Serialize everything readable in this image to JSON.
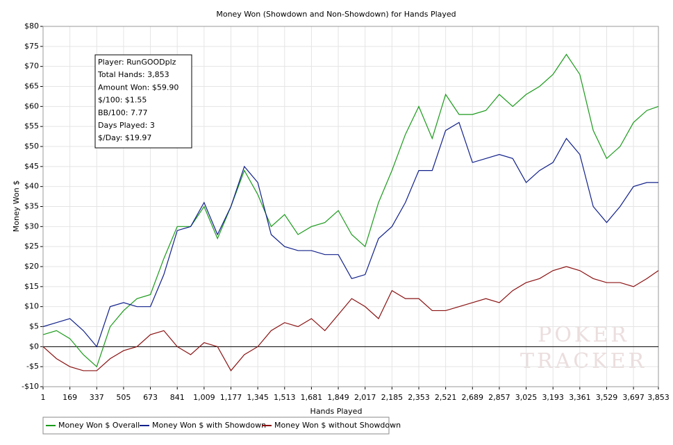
{
  "chart_data": {
    "type": "line",
    "title": "Money Won (Showdown and Non-Showdown) for Hands Played",
    "x_label": "Hands Played",
    "y_label": "Money Won $",
    "annotations": [
      "Player: RunGOODplz",
      "Total Hands: 3,853",
      "Amount Won: $59.90",
      "$/100: $1.55",
      "BB/100: 7.77",
      "Days Played: 3",
      "$/Day: $19.97"
    ],
    "watermark": [
      "POKER",
      "TRACKER"
    ],
    "x": [
      1,
      85,
      169,
      253,
      337,
      421,
      505,
      589,
      673,
      757,
      841,
      925,
      1009,
      1093,
      1177,
      1261,
      1345,
      1429,
      1513,
      1597,
      1681,
      1765,
      1849,
      1933,
      2017,
      2101,
      2185,
      2269,
      2353,
      2437,
      2521,
      2605,
      2689,
      2773,
      2857,
      2941,
      3025,
      3109,
      3193,
      3277,
      3361,
      3445,
      3529,
      3613,
      3697,
      3781,
      3853
    ],
    "series": [
      {
        "name": "Money Won $ Overall",
        "color": "#1a9a1a",
        "values": [
          3,
          4,
          2,
          -2,
          -5,
          5,
          9,
          12,
          13,
          22,
          30,
          30,
          35,
          27,
          35,
          44,
          38,
          30,
          33,
          28,
          30,
          31,
          34,
          28,
          25,
          36,
          44,
          53,
          60,
          52,
          63,
          58,
          58,
          59,
          63,
          60,
          63,
          65,
          68,
          73,
          68,
          54,
          47,
          50,
          56,
          59,
          60
        ]
      },
      {
        "name": "Money Won $ with Showdown",
        "color": "#10208a",
        "values": [
          5,
          6,
          7,
          4,
          0,
          10,
          11,
          10,
          10,
          18,
          29,
          30,
          36,
          28,
          35,
          45,
          41,
          28,
          25,
          24,
          24,
          23,
          23,
          17,
          18,
          27,
          30,
          36,
          44,
          44,
          54,
          56,
          46,
          47,
          48,
          47,
          41,
          44,
          46,
          52,
          48,
          35,
          31,
          35,
          40,
          41,
          41
        ]
      },
      {
        "name": "Money Won $ without Showdown",
        "color": "#8a1010",
        "values": [
          0,
          -3,
          -5,
          -6,
          -6,
          -3,
          -1,
          0,
          3,
          4,
          0,
          -2,
          1,
          0,
          -6,
          -2,
          0,
          4,
          6,
          5,
          7,
          4,
          8,
          12,
          10,
          7,
          14,
          12,
          12,
          9,
          9,
          10,
          11,
          12,
          11,
          14,
          16,
          17,
          19,
          20,
          19,
          17,
          16,
          16,
          15,
          17,
          19
        ]
      }
    ],
    "xlim": [
      1,
      3853
    ],
    "xticks": [
      1,
      {
        "value": 169,
        "label": "169"
      },
      337,
      505,
      673,
      841,
      {
        "value": 1009,
        "label": "1,009"
      },
      {
        "value": 1177,
        "label": "1,177"
      },
      {
        "value": 1345,
        "label": "1,345"
      },
      {
        "value": 1513,
        "label": "1,513"
      },
      {
        "value": 1681,
        "label": "1,681"
      },
      {
        "value": 1849,
        "label": "1,849"
      },
      {
        "value": 2017,
        "label": "2,017"
      },
      {
        "value": 2185,
        "label": "2,185"
      },
      {
        "value": 2353,
        "label": "2,353"
      },
      {
        "value": 2521,
        "label": "2,521"
      },
      {
        "value": 2689,
        "label": "2,689"
      },
      {
        "value": 2857,
        "label": "2,857"
      },
      {
        "value": 3025,
        "label": "3,025"
      },
      {
        "value": 3193,
        "label": "3,193"
      },
      {
        "value": 3361,
        "label": "3,361"
      },
      {
        "value": 3529,
        "label": "3,529"
      },
      {
        "value": 3697,
        "label": "3,697"
      },
      {
        "value": 3853,
        "label": "3,853"
      }
    ],
    "ylim": [
      -10,
      80
    ],
    "yticks": [
      {
        "value": -10,
        "label": "-$10"
      },
      {
        "value": -5,
        "label": "-$5"
      },
      {
        "value": 0,
        "label": "$0"
      },
      {
        "value": 5,
        "label": "$5"
      },
      {
        "value": 10,
        "label": "$10"
      },
      {
        "value": 15,
        "label": "$15"
      },
      {
        "value": 20,
        "label": "$20"
      },
      {
        "value": 25,
        "label": "$25"
      },
      {
        "value": 30,
        "label": "$30"
      },
      {
        "value": 35,
        "label": "$35"
      },
      {
        "value": 40,
        "label": "$40"
      },
      {
        "value": 45,
        "label": "$45"
      },
      {
        "value": 50,
        "label": "$50"
      },
      {
        "value": 55,
        "label": "$55"
      },
      {
        "value": 60,
        "label": "$60"
      },
      {
        "value": 65,
        "label": "$65"
      },
      {
        "value": 70,
        "label": "$70"
      },
      {
        "value": 75,
        "label": "$75"
      },
      {
        "value": 80,
        "label": "$80"
      }
    ],
    "grid": true
  }
}
